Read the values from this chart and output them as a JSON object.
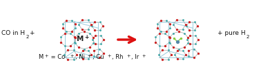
{
  "background_color": "#ffffff",
  "arrow_color": "#dd1111",
  "atom_o_color": "#cc2222",
  "atom_si_color": "#44aaaa",
  "atom_metal_color": "#5588aa",
  "atom_co_color": "#88cc44",
  "bond_color": "#aaaaaa",
  "uc_line_color": "#99ccdd",
  "text_color": "#111111",
  "left_label": "CO in H",
  "left_sub": "2",
  "left_plus": " +",
  "right_label": "+ pure H",
  "right_sub": "2",
  "mplus_text": "M",
  "mplus_sup": "+",
  "bottom_line": "M⁺ = Co⁺, Ni⁺, Cu⁺, Rh⁺, Ir⁺",
  "figsize": [
    3.78,
    0.98
  ],
  "dpi": 100
}
